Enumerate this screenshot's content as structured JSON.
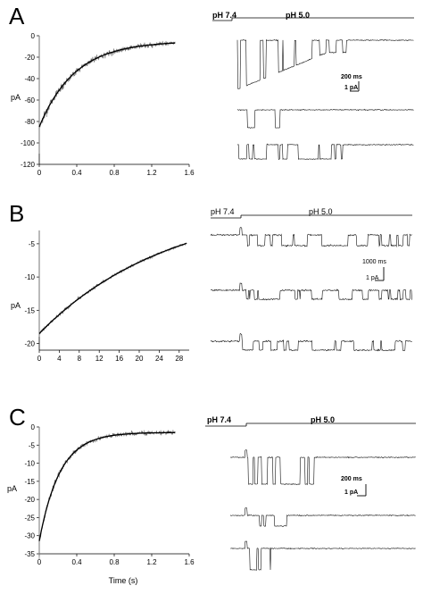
{
  "chart_data": [
    {
      "panel": "A",
      "type": "line",
      "ylabel": "pA",
      "xlabel": "",
      "xlim": [
        0,
        1.6
      ],
      "ylim": [
        -120,
        0
      ],
      "xticks": [
        "0",
        "0.4",
        "0.8",
        "1.2",
        "1.6"
      ],
      "yticks": [
        "0",
        "-20",
        "-40",
        "-60",
        "-80",
        "-100",
        "-120"
      ],
      "fit": {
        "amplitude": -80,
        "tau": 0.38,
        "offset": -5
      },
      "traces": {
        "labels": [
          "pH 7.4",
          "pH 5.0"
        ],
        "scalebar": {
          "time": "200 ms",
          "current": "1 pA"
        },
        "count": 3
      }
    },
    {
      "panel": "B",
      "type": "line",
      "ylabel": "pA",
      "xlabel": "",
      "xlim": [
        0,
        30
      ],
      "ylim": [
        -21,
        -3
      ],
      "xticks": [
        "0",
        "4",
        "8",
        "12",
        "16",
        "20",
        "24",
        "28"
      ],
      "yticks": [
        "-5",
        "-10",
        "-15",
        "-20"
      ],
      "fit": {
        "amplitude": -20,
        "tau": 26,
        "offset": 1.5
      },
      "traces": {
        "labels": [
          "pH 7.4",
          "pH 5.0"
        ],
        "scalebar": {
          "time": "1000 ms",
          "current": "1 pA"
        },
        "count": 3
      }
    },
    {
      "panel": "C",
      "type": "line",
      "ylabel": "pA",
      "xlabel": "Time (s)",
      "xlim": [
        0,
        1.6
      ],
      "ylim": [
        -35,
        0
      ],
      "xticks": [
        "0",
        "0.4",
        "0.8",
        "1.2",
        "1.6"
      ],
      "yticks": [
        "0",
        "-5",
        "-10",
        "-15",
        "-20",
        "-25",
        "-30",
        "-35"
      ],
      "fit": {
        "amplitude": -30,
        "tau": 0.22,
        "offset": -1.5
      },
      "traces": {
        "labels": [
          "pH 7.4",
          "pH 5.0"
        ],
        "scalebar": {
          "time": "200 ms",
          "current": "1 pA"
        },
        "count": 3
      }
    }
  ]
}
